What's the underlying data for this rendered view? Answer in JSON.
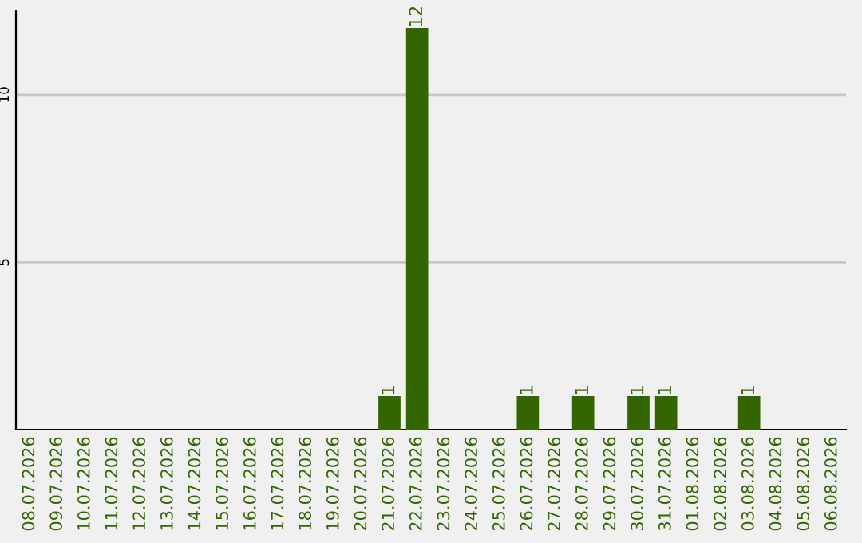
{
  "chart_data": {
    "type": "bar",
    "categories": [
      "08.07.2026",
      "09.07.2026",
      "10.07.2026",
      "11.07.2026",
      "12.07.2026",
      "13.07.2026",
      "14.07.2026",
      "15.07.2026",
      "16.07.2026",
      "17.07.2026",
      "18.07.2026",
      "19.07.2026",
      "20.07.2026",
      "21.07.2026",
      "22.07.2026",
      "23.07.2026",
      "24.07.2026",
      "25.07.2026",
      "26.07.2026",
      "27.07.2026",
      "28.07.2026",
      "29.07.2026",
      "30.07.2026",
      "31.07.2026",
      "01.08.2026",
      "02.08.2026",
      "03.08.2026",
      "04.08.2026",
      "05.08.2026",
      "06.08.2026"
    ],
    "values": [
      0,
      0,
      0,
      0,
      0,
      0,
      0,
      0,
      0,
      0,
      0,
      0,
      0,
      1,
      12,
      0,
      0,
      0,
      1,
      0,
      1,
      0,
      1,
      1,
      0,
      0,
      1,
      0,
      0,
      0
    ],
    "value_labels": [
      null,
      null,
      null,
      null,
      null,
      null,
      null,
      null,
      null,
      null,
      null,
      null,
      null,
      "1",
      "12",
      null,
      null,
      null,
      "1",
      null,
      "1",
      null,
      "1",
      "1",
      null,
      null,
      "1",
      null,
      null,
      null
    ],
    "color": "#336600",
    "ylim": [
      0,
      12.5
    ],
    "yticks": [
      5,
      10
    ],
    "grid": "y"
  }
}
